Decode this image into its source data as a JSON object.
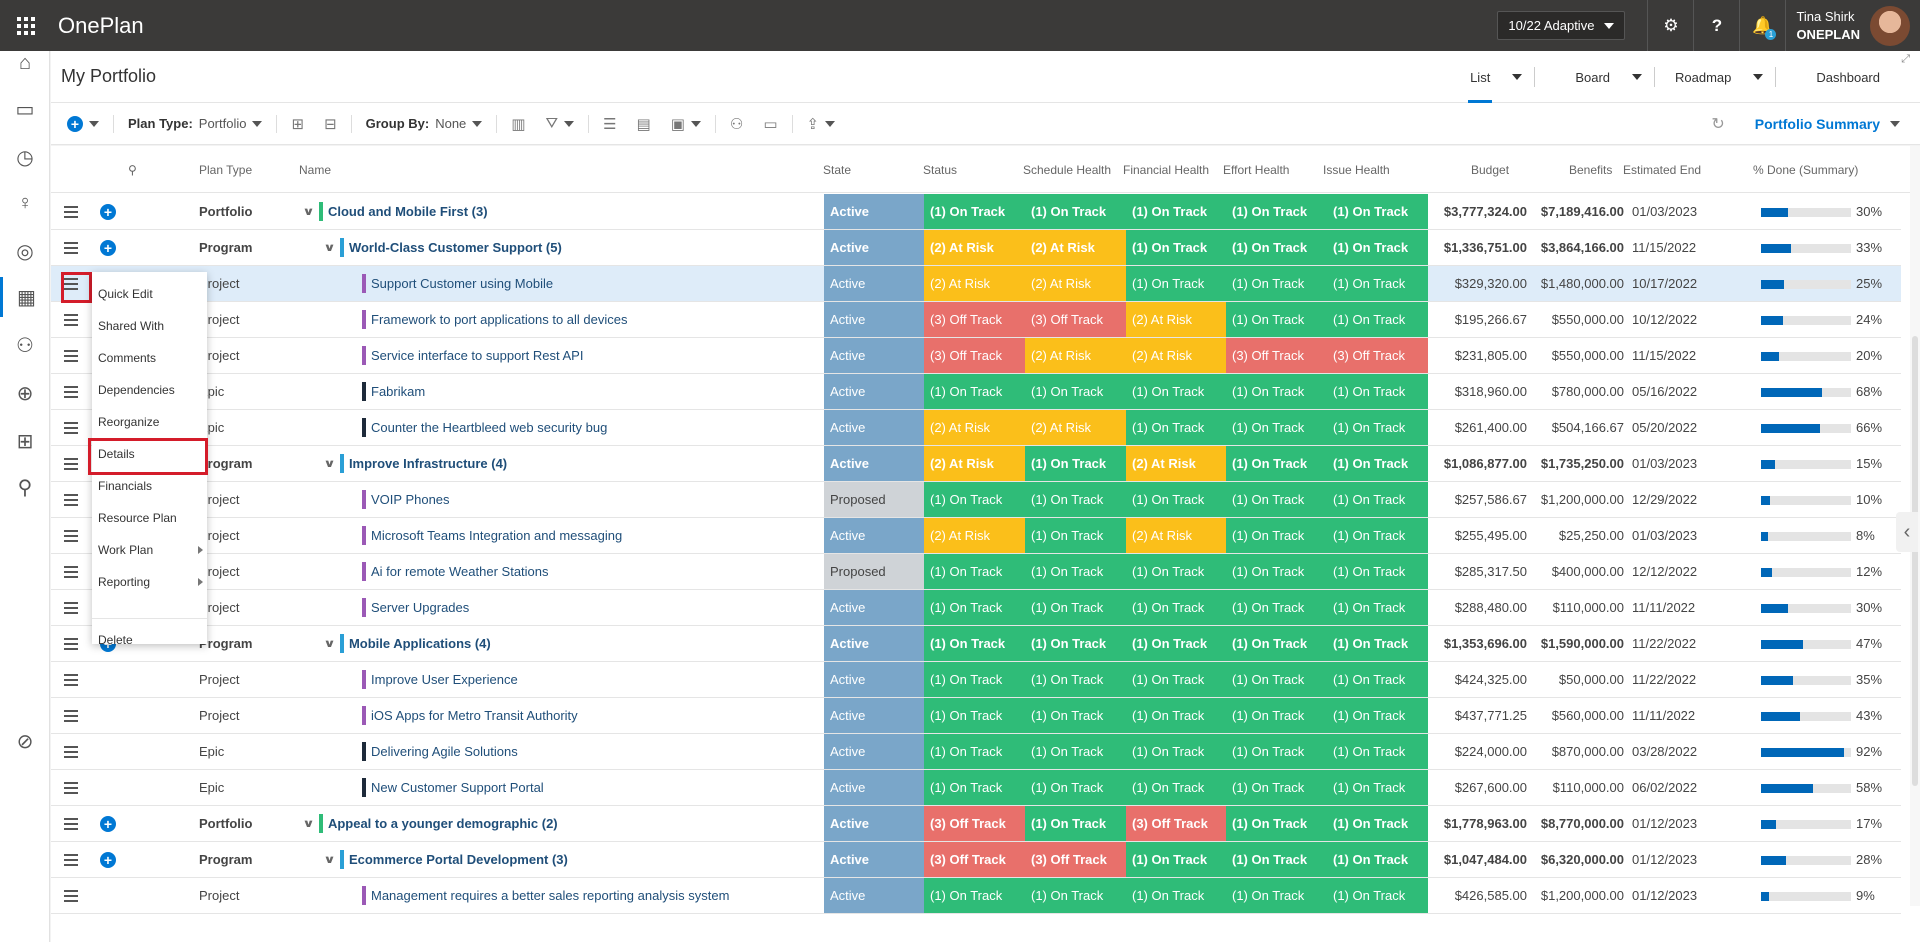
{
  "app": {
    "title": "OnePlan",
    "version": "10/22 Adaptive"
  },
  "user": {
    "name": "Tina Shirk",
    "org": "ONEPLAN",
    "notifications": "1"
  },
  "page": {
    "title": "My Portfolio"
  },
  "views": [
    "List",
    "Board",
    "Roadmap",
    "Dashboard"
  ],
  "toolbar": {
    "plan_type_label": "Plan Type:",
    "plan_type_value": "Portfolio",
    "group_by_label": "Group By:",
    "group_by_value": "None",
    "summary": "Portfolio Summary"
  },
  "columns": {
    "plan_type": "Plan Type",
    "name": "Name",
    "state": "State",
    "status": "Status",
    "schedule": "Schedule Health",
    "financial": "Financial Health",
    "effort": "Effort Health",
    "issue": "Issue Health",
    "budget": "Budget",
    "benefits": "Benefits",
    "estimated_end": "Estimated End",
    "pct_done": "% Done (Summary)"
  },
  "colors": {
    "state_active": "#7aa6c9",
    "state_proposed": "#cfd3d7",
    "on_track": "#2fbc78",
    "at_risk": "#fbbf1a",
    "off_track": "#e8706b",
    "accent": "#0078d4"
  },
  "rows": [
    {
      "plan_type": "Portfolio",
      "name": "Cloud and Mobile First (3)",
      "level": 0,
      "bold": true,
      "add": true,
      "bar": "#2fbc78",
      "state": "Active",
      "status": "(1) On Track",
      "schedule": "(1) On Track",
      "financial": "(1) On Track",
      "effort": "(1) On Track",
      "issue": "(1) On Track",
      "budget": "$3,777,324.00",
      "benefits": "$7,189,416.00",
      "end": "01/03/2023",
      "pct": "30%",
      "pct_value": 30
    },
    {
      "plan_type": "Program",
      "name": "World-Class Customer Support (5)",
      "level": 1,
      "bold": true,
      "add": true,
      "bar": "#2a9fd6",
      "state": "Active",
      "status": "(2) At Risk",
      "schedule": "(2) At Risk",
      "financial": "(1) On Track",
      "effort": "(1) On Track",
      "issue": "(1) On Track",
      "budget": "$1,336,751.00",
      "benefits": "$3,864,166.00",
      "end": "11/15/2022",
      "pct": "33%",
      "pct_value": 33
    },
    {
      "plan_type": "Project",
      "name": "Support Customer using Mobile",
      "level": 2,
      "bold": false,
      "add": false,
      "bar": "#9b59b6",
      "selected": true,
      "state": "Active",
      "status": "(2) At Risk",
      "schedule": "(2) At Risk",
      "financial": "(1) On Track",
      "effort": "(1) On Track",
      "issue": "(1) On Track",
      "budget": "$329,320.00",
      "benefits": "$1,480,000.00",
      "end": "10/17/2022",
      "pct": "25%",
      "pct_value": 25
    },
    {
      "plan_type": "Project",
      "name": "Framework to port applications to all devices",
      "level": 2,
      "bold": false,
      "add": false,
      "bar": "#9b59b6",
      "state": "Active",
      "status": "(3) Off Track",
      "schedule": "(3) Off Track",
      "financial": "(2) At Risk",
      "effort": "(1) On Track",
      "issue": "(1) On Track",
      "budget": "$195,266.67",
      "benefits": "$550,000.00",
      "end": "10/12/2022",
      "pct": "24%",
      "pct_value": 24
    },
    {
      "plan_type": "Project",
      "name": "Service interface to support Rest API",
      "level": 2,
      "bold": false,
      "add": false,
      "bar": "#9b59b6",
      "state": "Active",
      "status": "(3) Off Track",
      "schedule": "(2) At Risk",
      "financial": "(2) At Risk",
      "effort": "(3) Off Track",
      "issue": "(3) Off Track",
      "budget": "$231,805.00",
      "benefits": "$550,000.00",
      "end": "11/15/2022",
      "pct": "20%",
      "pct_value": 20
    },
    {
      "plan_type": "Epic",
      "name": "Fabrikam",
      "level": 2,
      "bold": false,
      "add": false,
      "bar": "#1e2a3a",
      "state": "Active",
      "status": "(1) On Track",
      "schedule": "(1) On Track",
      "financial": "(1) On Track",
      "effort": "(1) On Track",
      "issue": "(1) On Track",
      "budget": "$318,960.00",
      "benefits": "$780,000.00",
      "end": "05/16/2022",
      "pct": "68%",
      "pct_value": 68
    },
    {
      "plan_type": "Epic",
      "name": "Counter the Heartbleed web security bug",
      "level": 2,
      "bold": false,
      "add": false,
      "bar": "#1e2a3a",
      "state": "Active",
      "status": "(2) At Risk",
      "schedule": "(2) At Risk",
      "financial": "(1) On Track",
      "effort": "(1) On Track",
      "issue": "(1) On Track",
      "budget": "$261,400.00",
      "benefits": "$504,166.67",
      "end": "05/20/2022",
      "pct": "66%",
      "pct_value": 66
    },
    {
      "plan_type": "Program",
      "name": "Improve Infrastructure (4)",
      "level": 1,
      "bold": true,
      "add": false,
      "bar": "#2a9fd6",
      "state": "Active",
      "status": "(2) At Risk",
      "schedule": "(1) On Track",
      "financial": "(2) At Risk",
      "effort": "(1) On Track",
      "issue": "(1) On Track",
      "budget": "$1,086,877.00",
      "benefits": "$1,735,250.00",
      "end": "01/03/2023",
      "pct": "15%",
      "pct_value": 15
    },
    {
      "plan_type": "Project",
      "name": "VOIP Phones",
      "level": 2,
      "bold": false,
      "add": false,
      "bar": "#9b59b6",
      "state": "Proposed",
      "status": "(1) On Track",
      "schedule": "(1) On Track",
      "financial": "(1) On Track",
      "effort": "(1) On Track",
      "issue": "(1) On Track",
      "budget": "$257,586.67",
      "benefits": "$1,200,000.00",
      "end": "12/29/2022",
      "pct": "10%",
      "pct_value": 10
    },
    {
      "plan_type": "Project",
      "name": "Microsoft Teams Integration and messaging",
      "level": 2,
      "bold": false,
      "add": false,
      "bar": "#9b59b6",
      "state": "Active",
      "status": "(2) At Risk",
      "schedule": "(1) On Track",
      "financial": "(2) At Risk",
      "effort": "(1) On Track",
      "issue": "(1) On Track",
      "budget": "$255,495.00",
      "benefits": "$25,250.00",
      "end": "01/03/2023",
      "pct": "8%",
      "pct_value": 8
    },
    {
      "plan_type": "Project",
      "name": "Ai for remote Weather Stations",
      "level": 2,
      "bold": false,
      "add": false,
      "bar": "#9b59b6",
      "state": "Proposed",
      "status": "(1) On Track",
      "schedule": "(1) On Track",
      "financial": "(1) On Track",
      "effort": "(1) On Track",
      "issue": "(1) On Track",
      "budget": "$285,317.50",
      "benefits": "$400,000.00",
      "end": "12/12/2022",
      "pct": "12%",
      "pct_value": 12
    },
    {
      "plan_type": "Project",
      "name": "Server Upgrades",
      "level": 2,
      "bold": false,
      "add": false,
      "bar": "#9b59b6",
      "state": "Active",
      "status": "(1) On Track",
      "schedule": "(1) On Track",
      "financial": "(1) On Track",
      "effort": "(1) On Track",
      "issue": "(1) On Track",
      "budget": "$288,480.00",
      "benefits": "$110,000.00",
      "end": "11/11/2022",
      "pct": "30%",
      "pct_value": 30
    },
    {
      "plan_type": "Program",
      "name": "Mobile Applications (4)",
      "level": 1,
      "bold": true,
      "add": true,
      "bar": "#2a9fd6",
      "state": "Active",
      "status": "(1) On Track",
      "schedule": "(1) On Track",
      "financial": "(1) On Track",
      "effort": "(1) On Track",
      "issue": "(1) On Track",
      "budget": "$1,353,696.00",
      "benefits": "$1,590,000.00",
      "end": "11/22/2022",
      "pct": "47%",
      "pct_value": 47
    },
    {
      "plan_type": "Project",
      "name": "Improve User Experience",
      "level": 2,
      "bold": false,
      "add": false,
      "bar": "#9b59b6",
      "state": "Active",
      "status": "(1) On Track",
      "schedule": "(1) On Track",
      "financial": "(1) On Track",
      "effort": "(1) On Track",
      "issue": "(1) On Track",
      "budget": "$424,325.00",
      "benefits": "$50,000.00",
      "end": "11/22/2022",
      "pct": "35%",
      "pct_value": 35
    },
    {
      "plan_type": "Project",
      "name": "iOS Apps for Metro Transit Authority",
      "level": 2,
      "bold": false,
      "add": false,
      "bar": "#9b59b6",
      "state": "Active",
      "status": "(1) On Track",
      "schedule": "(1) On Track",
      "financial": "(1) On Track",
      "effort": "(1) On Track",
      "issue": "(1) On Track",
      "budget": "$437,771.25",
      "benefits": "$560,000.00",
      "end": "11/11/2022",
      "pct": "43%",
      "pct_value": 43
    },
    {
      "plan_type": "Epic",
      "name": "Delivering Agile Solutions",
      "level": 2,
      "bold": false,
      "add": false,
      "bar": "#1e2a3a",
      "state": "Active",
      "status": "(1) On Track",
      "schedule": "(1) On Track",
      "financial": "(1) On Track",
      "effort": "(1) On Track",
      "issue": "(1) On Track",
      "budget": "$224,000.00",
      "benefits": "$870,000.00",
      "end": "03/28/2022",
      "pct": "92%",
      "pct_value": 92
    },
    {
      "plan_type": "Epic",
      "name": "New Customer Support Portal",
      "level": 2,
      "bold": false,
      "add": false,
      "bar": "#1e2a3a",
      "state": "Active",
      "status": "(1) On Track",
      "schedule": "(1) On Track",
      "financial": "(1) On Track",
      "effort": "(1) On Track",
      "issue": "(1) On Track",
      "budget": "$267,600.00",
      "benefits": "$110,000.00",
      "end": "06/02/2022",
      "pct": "58%",
      "pct_value": 58
    },
    {
      "plan_type": "Portfolio",
      "name": "Appeal to a younger demographic (2)",
      "level": 0,
      "bold": true,
      "add": true,
      "bar": "#2fbc78",
      "state": "Active",
      "status": "(3) Off Track",
      "schedule": "(1) On Track",
      "financial": "(3) Off Track",
      "effort": "(1) On Track",
      "issue": "(1) On Track",
      "budget": "$1,778,963.00",
      "benefits": "$8,770,000.00",
      "end": "01/12/2023",
      "pct": "17%",
      "pct_value": 17
    },
    {
      "plan_type": "Program",
      "name": "Ecommerce Portal Development (3)",
      "level": 1,
      "bold": true,
      "add": true,
      "bar": "#2a9fd6",
      "state": "Active",
      "status": "(3) Off Track",
      "schedule": "(3) Off Track",
      "financial": "(1) On Track",
      "effort": "(1) On Track",
      "issue": "(1) On Track",
      "budget": "$1,047,484.00",
      "benefits": "$6,320,000.00",
      "end": "01/12/2023",
      "pct": "28%",
      "pct_value": 28
    },
    {
      "plan_type": "Project",
      "name": "Management requires a better sales reporting analysis system",
      "level": 2,
      "bold": false,
      "add": false,
      "bar": "#9b59b6",
      "state": "Active",
      "status": "(1) On Track",
      "schedule": "(1) On Track",
      "financial": "(1) On Track",
      "effort": "(1) On Track",
      "issue": "(1) On Track",
      "budget": "$426,585.00",
      "benefits": "$1,200,000.00",
      "end": "01/12/2023",
      "pct": "9%",
      "pct_value": 9
    }
  ],
  "context_menu": {
    "items": [
      {
        "label": "Quick Edit",
        "sub": false
      },
      {
        "label": "Shared With",
        "sub": false
      },
      {
        "label": "Comments",
        "sub": false
      },
      {
        "label": "Dependencies",
        "sub": false
      },
      {
        "label": "Reorganize",
        "sub": false
      },
      {
        "label": "Details",
        "sub": false,
        "highlighted": true
      },
      {
        "label": "Financials",
        "sub": false
      },
      {
        "label": "Resource Plan",
        "sub": false
      },
      {
        "label": "Work Plan",
        "sub": true
      },
      {
        "label": "Reporting",
        "sub": true
      },
      {
        "label": "Delete",
        "sub": false
      }
    ]
  }
}
